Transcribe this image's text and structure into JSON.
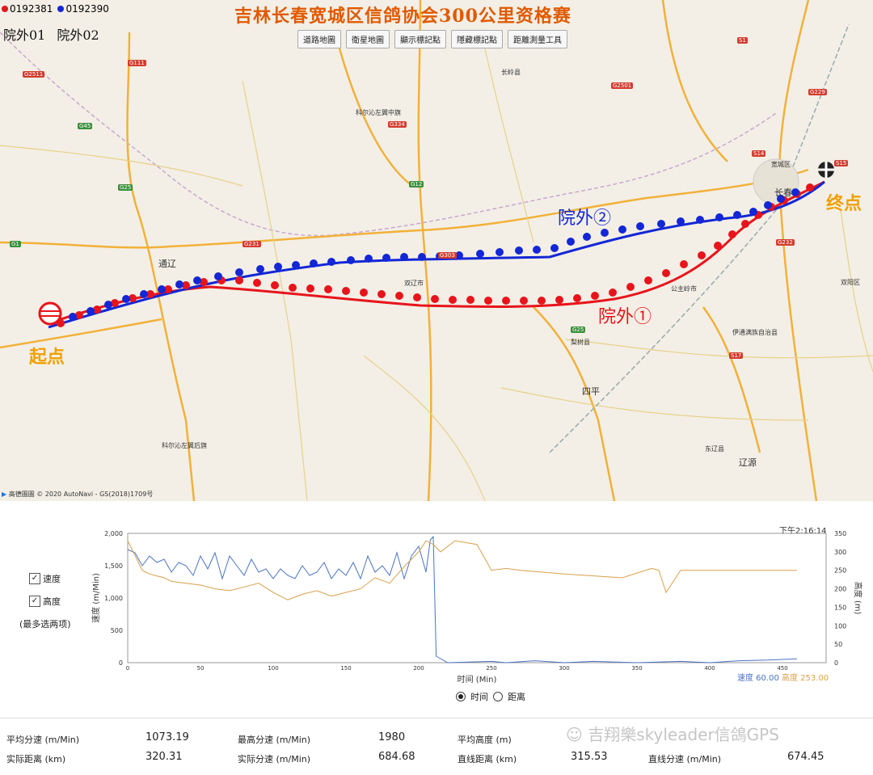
{
  "legend": {
    "pigeon1_id": "0192381",
    "pigeon2_id": "0192390",
    "pigeon1_color": "#e8141b",
    "pigeon2_color": "#1327d6"
  },
  "labels_top": [
    "院外01",
    "院外02"
  ],
  "title": "吉林长春宽城区信鸽协会300公里资格赛",
  "toolbar": [
    "道路地圖",
    "衛星地圖",
    "顯示標記點",
    "隱藏標記點",
    "距離測量工具"
  ],
  "map_annotations": {
    "start": "起点",
    "end": "终点",
    "route1_label": "院外①",
    "route2_label": "院外②"
  },
  "map_places": [
    {
      "name": "通辽"
    },
    {
      "name": "双辽市"
    },
    {
      "name": "长春"
    },
    {
      "name": "四平"
    },
    {
      "name": "公主岭市"
    },
    {
      "name": "梨树县"
    },
    {
      "name": "辽源"
    },
    {
      "name": "东辽县"
    },
    {
      "name": "科尔沁左翼中旗"
    },
    {
      "name": "科尔沁左翼后旗"
    },
    {
      "name": "伊通满族自治县"
    },
    {
      "name": "宽城区"
    },
    {
      "name": "双阳区"
    },
    {
      "name": "长岭县"
    }
  ],
  "road_shields": [
    "G111",
    "G2511",
    "G45",
    "G25",
    "G231",
    "G303",
    "G334",
    "G12",
    "G1",
    "G2501",
    "S1",
    "G229",
    "S14",
    "S15",
    "G232",
    "S17",
    "G25"
  ],
  "copyright": "高德圖圖 © 2020 AutoNavi - GS(2018)1709号",
  "chart": {
    "checkboxes": [
      {
        "label": "速度",
        "checked": true
      },
      {
        "label": "高度",
        "checked": true
      }
    ],
    "note": "(最多选两项)",
    "timestamp": "下午2:16:14",
    "ylabel_left": "速度 (m/Min)",
    "ylabel_right": "高度 (m)",
    "xlabel": "时间 (Min)",
    "status_speed": "速度 60.00",
    "status_height": "高度 253.00",
    "speed_color": "#4a73c4",
    "height_color": "#d9a04a",
    "radio_options": [
      {
        "label": "时间",
        "selected": true
      },
      {
        "label": "距离",
        "selected": false
      }
    ]
  },
  "chart_data": {
    "type": "line",
    "x_range": [
      0,
      480
    ],
    "x_ticks": [
      0,
      50,
      100,
      150,
      200,
      250,
      300,
      350,
      400,
      450
    ],
    "y_left_range": [
      0,
      2000
    ],
    "y_left_ticks": [
      0,
      500,
      1000,
      1500,
      2000
    ],
    "y_left_tick_labels": [
      "0",
      "500",
      "1,000",
      "1,500",
      "2,000"
    ],
    "y_right_range": [
      0,
      350
    ],
    "y_right_ticks": [
      0,
      50,
      100,
      150,
      200,
      250,
      300,
      350
    ],
    "series": [
      {
        "name": "速度",
        "axis": "left",
        "x": [
          0,
          5,
          10,
          15,
          20,
          25,
          30,
          35,
          40,
          45,
          50,
          55,
          60,
          65,
          70,
          75,
          80,
          85,
          90,
          95,
          100,
          105,
          110,
          115,
          120,
          125,
          130,
          135,
          140,
          145,
          150,
          155,
          160,
          165,
          170,
          175,
          180,
          185,
          190,
          195,
          200,
          205,
          208,
          210,
          212,
          220,
          250,
          260,
          280,
          300,
          320,
          350,
          380,
          400,
          420,
          440,
          460
        ],
        "y": [
          1750,
          1700,
          1500,
          1650,
          1550,
          1600,
          1400,
          1550,
          1500,
          1350,
          1650,
          1450,
          1700,
          1300,
          1650,
          1500,
          1350,
          1600,
          1400,
          1450,
          1300,
          1450,
          1350,
          1300,
          1500,
          1350,
          1400,
          1550,
          1300,
          1450,
          1350,
          1550,
          1300,
          1650,
          1400,
          1500,
          1350,
          1700,
          1300,
          1650,
          1800,
          1400,
          1900,
          1950,
          100,
          0,
          20,
          0,
          30,
          0,
          20,
          0,
          20,
          0,
          30,
          40,
          60
        ]
      },
      {
        "name": "高度",
        "axis": "right",
        "x": [
          0,
          5,
          10,
          15,
          20,
          25,
          30,
          40,
          50,
          60,
          70,
          80,
          90,
          100,
          110,
          120,
          130,
          140,
          150,
          160,
          170,
          180,
          190,
          200,
          205,
          210,
          215,
          225,
          240,
          250,
          260,
          270,
          300,
          340,
          360,
          365,
          370,
          380,
          460
        ],
        "y": [
          330,
          290,
          250,
          240,
          235,
          230,
          220,
          215,
          210,
          200,
          195,
          205,
          215,
          190,
          170,
          185,
          195,
          180,
          190,
          200,
          230,
          215,
          260,
          300,
          330,
          320,
          300,
          330,
          320,
          250,
          255,
          250,
          240,
          230,
          255,
          250,
          190,
          250,
          250
        ]
      }
    ]
  },
  "stats": {
    "avg_speed_label": "平均分速 (m/Min)",
    "avg_speed": "1073.19",
    "max_speed_label": "最高分速 (m/Min)",
    "max_speed": "1980",
    "avg_height_label": "平均高度 (m)",
    "avg_height": "",
    "actual_dist_label": "实际距离 (km)",
    "actual_dist": "320.31",
    "actual_speed_label": "实际分速 (m/Min)",
    "actual_speed": "684.68",
    "straight_dist_label": "直线距离 (km)",
    "straight_dist": "315.53",
    "straight_speed_label": "直线分速 (m/Min)",
    "straight_speed": "674.45"
  },
  "watermark": "吉翔樂skyleader信鴿GPS"
}
